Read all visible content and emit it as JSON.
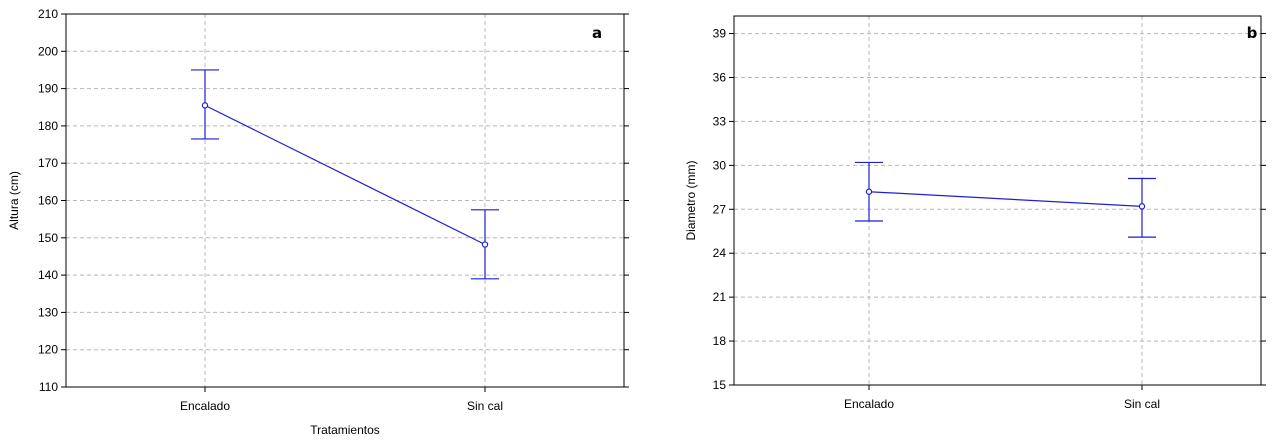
{
  "chart_data": [
    {
      "type": "line",
      "panel_label": "a",
      "xlabel": "Tratamientos",
      "ylabel": "Altura (cm)",
      "categories": [
        "Encalado",
        "Sin cal"
      ],
      "values": [
        185.5,
        148.2
      ],
      "error_low": [
        176.5,
        139.0
      ],
      "error_high": [
        195.0,
        157.5
      ],
      "ylim": [
        110,
        210
      ],
      "yticks": [
        110,
        120,
        130,
        140,
        150,
        160,
        170,
        180,
        190,
        200,
        210
      ],
      "grid": true,
      "color": "#1f1fd0"
    },
    {
      "type": "line",
      "panel_label": "b",
      "xlabel": "",
      "ylabel": "Diametro (mm)",
      "categories": [
        "Encalado",
        "Sin cal"
      ],
      "values": [
        28.2,
        27.2
      ],
      "error_low": [
        26.2,
        25.1
      ],
      "error_high": [
        30.2,
        29.1
      ],
      "ylim": [
        15,
        40.2
      ],
      "yticks": [
        15,
        18,
        21,
        24,
        27,
        30,
        33,
        36,
        39
      ],
      "grid": true,
      "color": "#1f1fd0"
    }
  ]
}
